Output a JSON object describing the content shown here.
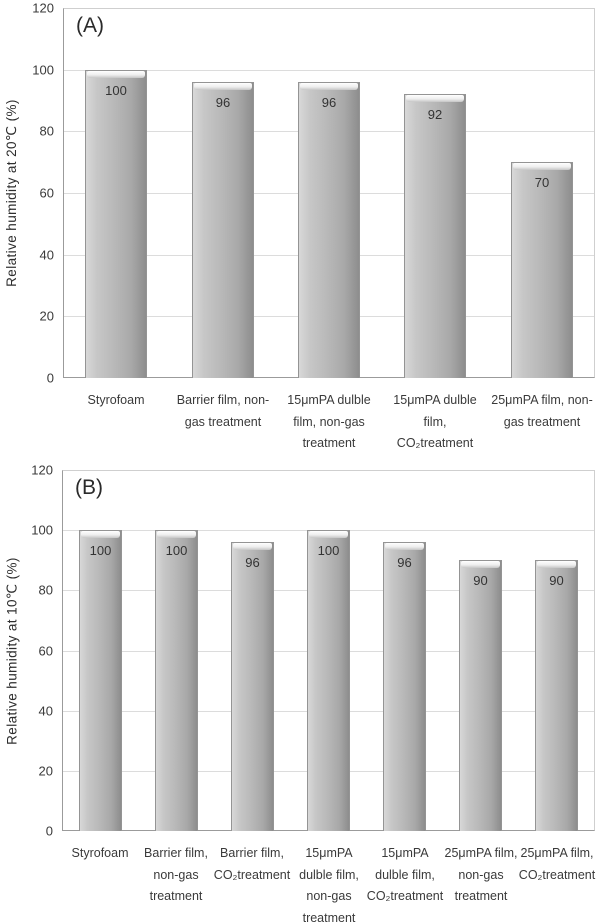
{
  "figure": {
    "background": "#ffffff",
    "text_color": "#3a3a3a"
  },
  "colors": {
    "bar_fill_light": "#d8d8d8",
    "bar_fill_mid": "#b8b8b8",
    "bar_fill_dark": "#8d8d8d",
    "bar_border": "#949494",
    "gridline": "#dcdcdc",
    "axis_line": "#9b9b9b"
  },
  "chart_data": [
    {
      "type": "bar",
      "panel_label": "(A)",
      "title": "",
      "xlabel": "",
      "ylabel": "Relative humidity at 20℃ (%)",
      "ylim": [
        0,
        120
      ],
      "yticks": [
        0,
        20,
        40,
        60,
        80,
        100,
        120
      ],
      "grid": true,
      "legend": "none",
      "categories": [
        "Styrofoam",
        "Barrier film, non-gas treatment",
        "15μmPA dulble film, non-gas treatment",
        "15μmPA dulble film, CO₂treatment",
        "25μmPA film, non-gas treatment"
      ],
      "category_display": [
        "Styrofoam",
        "Barrier film, non-\ngas treatment",
        "15μmPA dulble\nfilm, non-gas\ntreatment",
        "15μmPA dulble\nfilm,\nCO₂treatment",
        "25μmPA film, non-\ngas treatment"
      ],
      "values": [
        100,
        96,
        96,
        92,
        70
      ]
    },
    {
      "type": "bar",
      "panel_label": "(B)",
      "title": "",
      "xlabel": "",
      "ylabel": "Relative humidity at 10℃ (%)",
      "ylim": [
        0,
        120
      ],
      "yticks": [
        0,
        20,
        40,
        60,
        80,
        100,
        120
      ],
      "grid": true,
      "legend": "none",
      "categories": [
        "Styrofoam",
        "Barrier film, non-gas treatment",
        "Barrier film, CO₂treatment",
        "15μmPA dulble film, non-gas treatment",
        "15μmPA dulble film, CO₂treatment",
        "25μmPA film, non-gas treatment",
        "25μmPA film, CO₂treatment"
      ],
      "category_display": [
        "Styrofoam",
        "Barrier film,\nnon-gas\ntreatment",
        "Barrier film,\nCO₂treatment",
        "15μmPA\ndulble film,\nnon-gas\ntreatment",
        "15μmPA\ndulble film,\nCO₂treatment",
        "25μmPA film,\nnon-gas\ntreatment",
        "25μmPA film,\nCO₂treatment"
      ],
      "values": [
        100,
        100,
        96,
        100,
        96,
        90,
        90
      ]
    }
  ]
}
